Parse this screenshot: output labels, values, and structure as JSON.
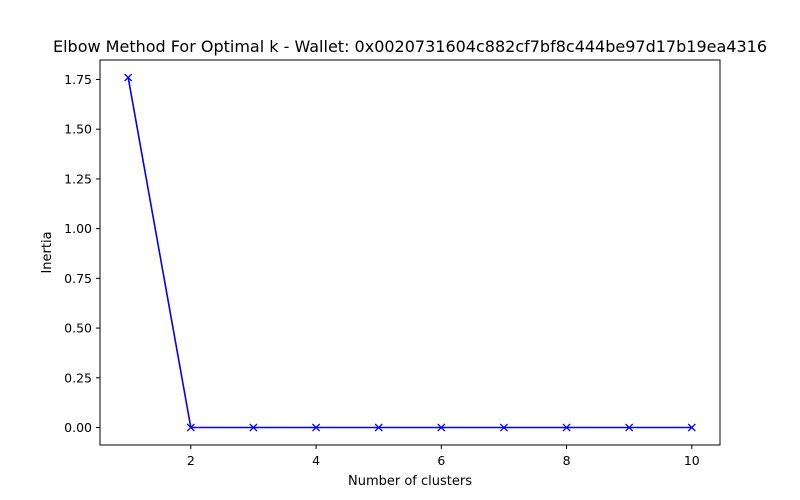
{
  "chart_data": {
    "type": "line",
    "title": "Elbow Method For Optimal k - Wallet: 0x0020731604c882cf7bf8c444be97d17b19ea4316",
    "xlabel": "Number of clusters",
    "ylabel": "Inertia",
    "x": [
      1,
      2,
      3,
      4,
      5,
      6,
      7,
      8,
      9,
      10
    ],
    "series": [
      {
        "values": [
          1.76,
          0.0,
          0.0,
          0.0,
          0.0,
          0.0,
          0.0,
          0.0,
          0.0,
          0.0
        ],
        "color": "#0000ff",
        "marker": "x"
      }
    ],
    "xlim": [
      0.55,
      10.45
    ],
    "ylim": [
      -0.088,
      1.848
    ],
    "xticks": [
      2,
      4,
      6,
      8,
      10
    ],
    "yticks": [
      0.0,
      0.25,
      0.5,
      0.75,
      1.0,
      1.25,
      1.5,
      1.75
    ],
    "xtick_labels": [
      "2",
      "4",
      "6",
      "8",
      "10"
    ],
    "ytick_labels": [
      "0.00",
      "0.25",
      "0.50",
      "0.75",
      "1.00",
      "1.25",
      "1.50",
      "1.75"
    ],
    "grid": false,
    "legend": "none"
  }
}
